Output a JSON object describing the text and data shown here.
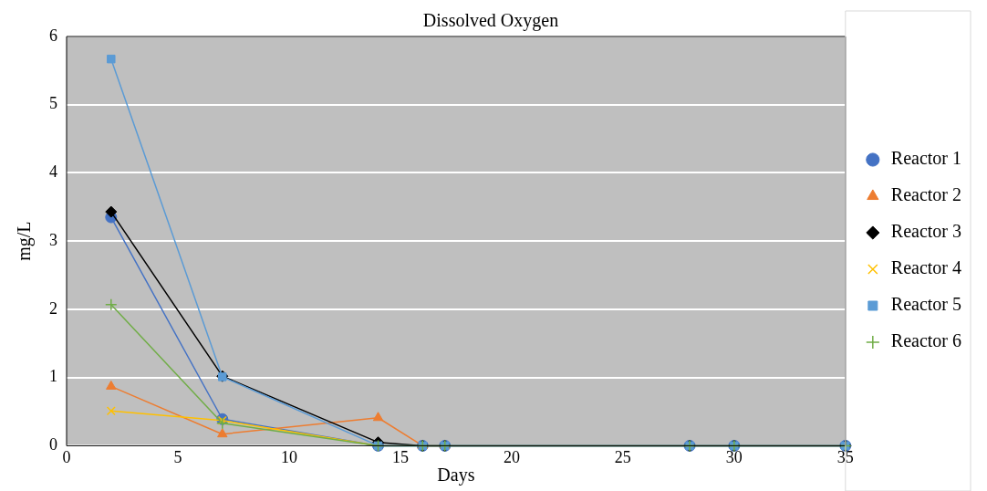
{
  "chart_data": {
    "type": "line",
    "title": "Dissolved Oxygen",
    "xlabel": "Days",
    "ylabel": "mg/L",
    "x": [
      2,
      7,
      14,
      16,
      17,
      28,
      30,
      35
    ],
    "series": [
      {
        "name": "Reactor 1",
        "color": "#4472c4",
        "marker": "circle",
        "values": [
          3.35,
          0.39,
          0,
          0,
          0,
          0,
          0,
          0
        ]
      },
      {
        "name": "Reactor 2",
        "color": "#ed7d31",
        "marker": "triangle",
        "values": [
          0.87,
          0.17,
          0.41,
          0,
          0,
          null,
          null,
          null
        ]
      },
      {
        "name": "Reactor 3",
        "color": "#000000",
        "marker": "diamond",
        "values": [
          3.43,
          1.02,
          0.05,
          0,
          0,
          0,
          0,
          0
        ]
      },
      {
        "name": "Reactor 4",
        "color": "#ffc000",
        "marker": "x",
        "values": [
          0.51,
          0.37,
          0,
          null,
          null,
          null,
          null,
          null
        ]
      },
      {
        "name": "Reactor 5",
        "color": "#5b9bd5",
        "marker": "square",
        "values": [
          5.67,
          1.01,
          0,
          0,
          0,
          0,
          0,
          0
        ]
      },
      {
        "name": "Reactor 6",
        "color": "#70ad47",
        "marker": "cross",
        "values": [
          2.07,
          0.33,
          0,
          0,
          0,
          0,
          0,
          0
        ]
      }
    ],
    "xlim": [
      0,
      35
    ],
    "xticks": [
      0,
      5,
      10,
      15,
      20,
      25,
      30,
      35
    ],
    "ylim": [
      0,
      6
    ],
    "yticks": [
      0,
      1,
      2,
      3,
      4,
      5,
      6
    ],
    "grid": "y",
    "legend": "right",
    "line_style": "solid"
  }
}
